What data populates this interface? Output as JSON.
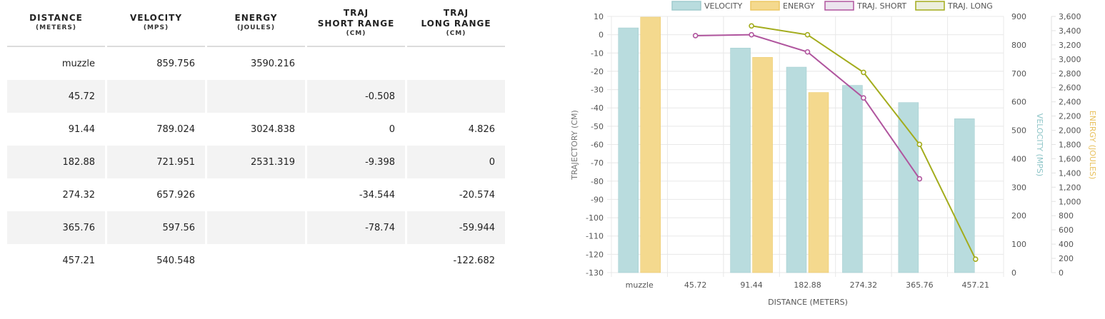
{
  "table": {
    "headers": [
      {
        "title": "DISTANCE",
        "title2": "",
        "sub": "(METERS)"
      },
      {
        "title": "VELOCITY",
        "title2": "",
        "sub": "(MPS)"
      },
      {
        "title": "ENERGY",
        "title2": "",
        "sub": "(JOULES)"
      },
      {
        "title": "TRAJ",
        "title2": "SHORT RANGE",
        "sub": "(CM)"
      },
      {
        "title": "TRAJ",
        "title2": "LONG RANGE",
        "sub": "(CM)"
      }
    ],
    "rows": [
      [
        "muzzle",
        "859.756",
        "3590.216",
        "",
        ""
      ],
      [
        "45.72",
        "",
        "",
        "-0.508",
        ""
      ],
      [
        "91.44",
        "789.024",
        "3024.838",
        "0",
        "4.826"
      ],
      [
        "182.88",
        "721.951",
        "2531.319",
        "-9.398",
        "0"
      ],
      [
        "274.32",
        "657.926",
        "",
        "-34.544",
        "-20.574"
      ],
      [
        "365.76",
        "597.56",
        "",
        "-78.74",
        "-59.944"
      ],
      [
        "457.21",
        "540.548",
        "",
        "",
        "-122.682"
      ]
    ]
  },
  "chart_data": {
    "type": "bar",
    "categories": [
      "muzzle",
      "45.72",
      "91.44",
      "182.88",
      "274.32",
      "365.76",
      "457.21"
    ],
    "xlabel": "DISTANCE (METERS)",
    "legend_position": "top",
    "grid": true,
    "axes": {
      "trajectory": {
        "label": "TRAJECTORY (CM)",
        "range": [
          -130,
          10
        ],
        "step": 10,
        "side": "left"
      },
      "velocity": {
        "label": "VELOCITY (MPS)",
        "range": [
          0,
          900
        ],
        "step": 100,
        "side": "right"
      },
      "energy": {
        "label": "ENERGY (JOULES)",
        "range": [
          0,
          3600
        ],
        "step": 200,
        "side": "right-outer"
      }
    },
    "series": [
      {
        "name": "VELOCITY",
        "type": "bar",
        "axis": "velocity",
        "color": "#b9dcde",
        "stroke": "#9fcbcd",
        "values": [
          859.756,
          null,
          789.024,
          721.951,
          657.926,
          597.56,
          540.548
        ]
      },
      {
        "name": "ENERGY",
        "type": "bar",
        "axis": "energy",
        "color": "#f4d98e",
        "stroke": "#ecc763",
        "values": [
          3590.216,
          null,
          3024.838,
          2531.319,
          null,
          null,
          null
        ]
      },
      {
        "name": "TRAJ. SHORT",
        "type": "line",
        "axis": "trajectory",
        "color": "#b0559e",
        "values": [
          null,
          -0.508,
          0,
          -9.398,
          -34.544,
          -78.74,
          null
        ]
      },
      {
        "name": "TRAJ. LONG",
        "type": "line",
        "axis": "trajectory",
        "color": "#a3ac1c",
        "values": [
          null,
          null,
          4.826,
          0,
          -20.574,
          -59.944,
          -122.682
        ]
      }
    ]
  }
}
